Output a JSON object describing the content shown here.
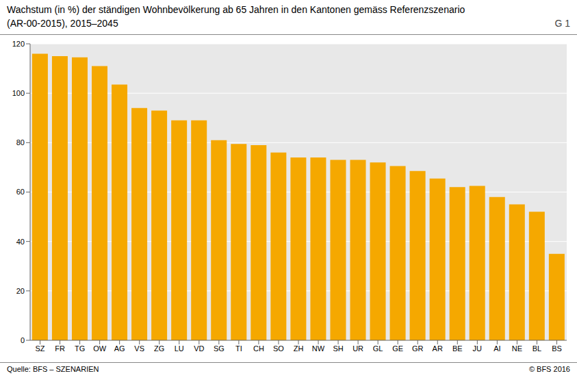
{
  "chart_data": {
    "type": "bar",
    "title": "Wachstum (in %) der ständigen Wohnbevölkerung ab 65 Jahren in den Kantonen gemäss Referenzszenario",
    "subtitle": "(AR-00-2015), 2015–2045",
    "annotations": [
      "G 1",
      "Quelle: BFS – SZENARIEN",
      "© BFS 2016"
    ],
    "categories": [
      "SZ",
      "FR",
      "TG",
      "OW",
      "AG",
      "VS",
      "ZG",
      "LU",
      "VD",
      "SG",
      "TI",
      "CH",
      "SO",
      "ZH",
      "NW",
      "SH",
      "UR",
      "GL",
      "GE",
      "GR",
      "AR",
      "BE",
      "JU",
      "AI",
      "NE",
      "BL",
      "BS"
    ],
    "values": [
      116.0,
      115.0,
      114.5,
      111.0,
      103.5,
      94.0,
      93.0,
      89.0,
      89.0,
      81.0,
      79.5,
      79.0,
      76.0,
      74.0,
      74.0,
      73.0,
      73.0,
      72.0,
      70.5,
      68.5,
      65.5,
      62.0,
      62.5,
      58.0,
      55.0,
      52.0,
      35.0
    ],
    "color": "#F5A800",
    "ylim": [
      0,
      120
    ],
    "yticks": [
      0,
      20,
      40,
      60,
      80,
      100,
      120
    ],
    "grid": true
  }
}
